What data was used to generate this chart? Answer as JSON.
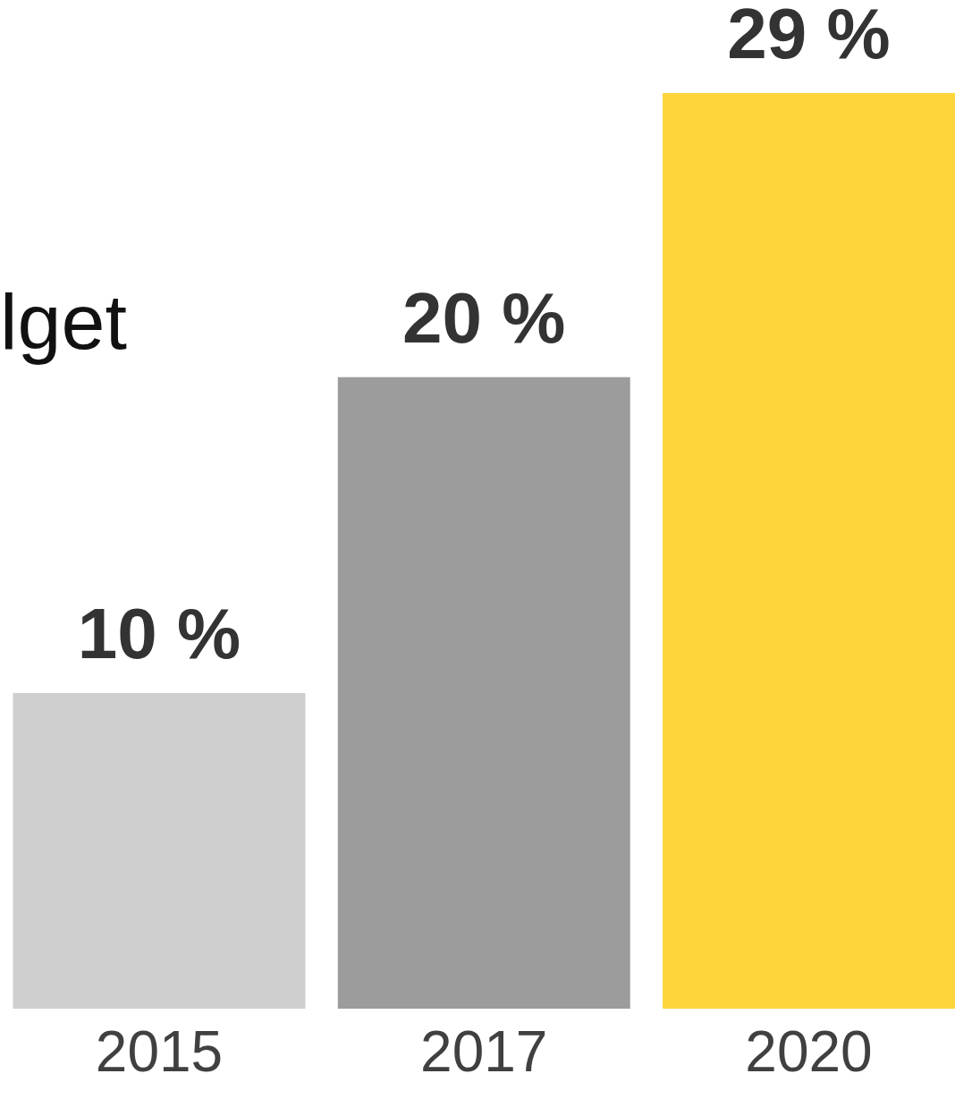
{
  "chart_data": {
    "type": "bar",
    "categories": [
      "2015",
      "2017",
      "2020"
    ],
    "values": [
      10,
      20,
      29
    ],
    "colors": [
      "#cfcfcf",
      "#9c9c9c",
      "#fed53a"
    ],
    "value_labels": [
      "10 %",
      "20 %",
      "29 %"
    ],
    "annotations": [
      "lget"
    ]
  }
}
